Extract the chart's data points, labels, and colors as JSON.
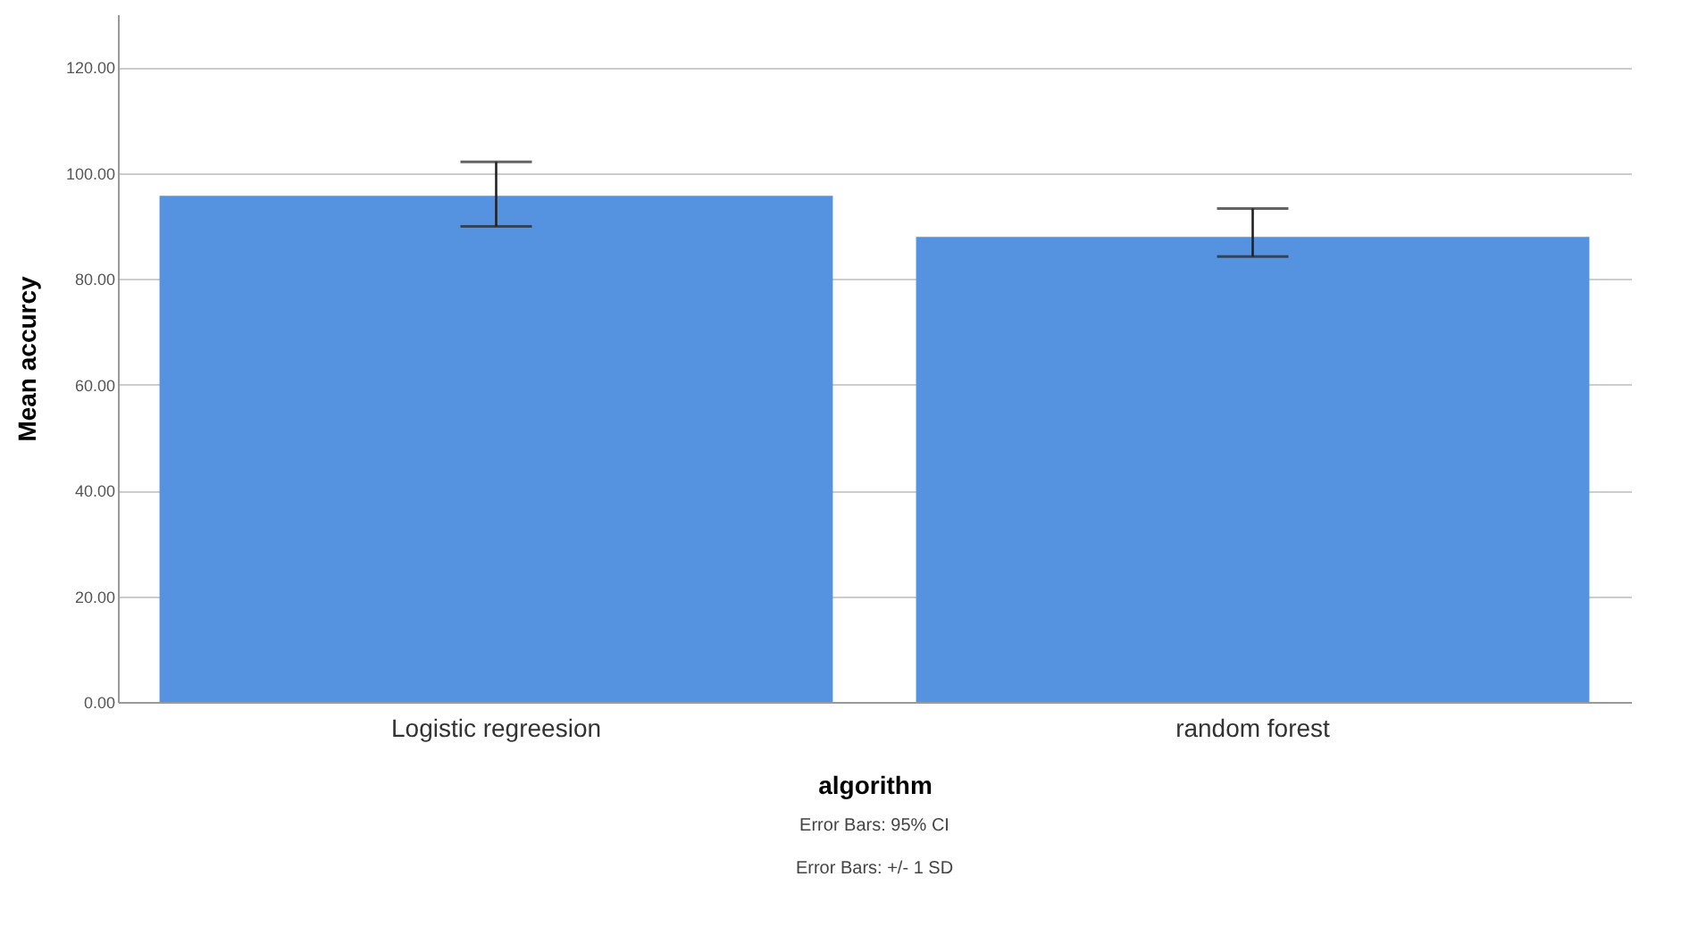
{
  "chart_data": {
    "type": "bar",
    "xlabel": "algorithm",
    "ylabel": "Mean accurcy",
    "categories": [
      "Logistic regreesion",
      "random forest"
    ],
    "values": [
      95.7,
      87.9
    ],
    "errors": [
      [
        89.9,
        102.1
      ],
      [
        84.2,
        93.3
      ]
    ],
    "color": "#5593e0",
    "ylim": [
      0,
      130
    ],
    "yticks": [
      {
        "value": 0,
        "label": "0.00"
      },
      {
        "value": 20,
        "label": "20.00"
      },
      {
        "value": 40,
        "label": "40.00"
      },
      {
        "value": 60,
        "label": "60.00"
      },
      {
        "value": 80,
        "label": "80.00"
      },
      {
        "value": 100,
        "label": "100.00"
      },
      {
        "value": 120,
        "label": "120.00"
      }
    ],
    "grid": "y",
    "annotations": [
      "Error Bars: 95% CI",
      "Error Bars: +/- 1 SD"
    ]
  }
}
